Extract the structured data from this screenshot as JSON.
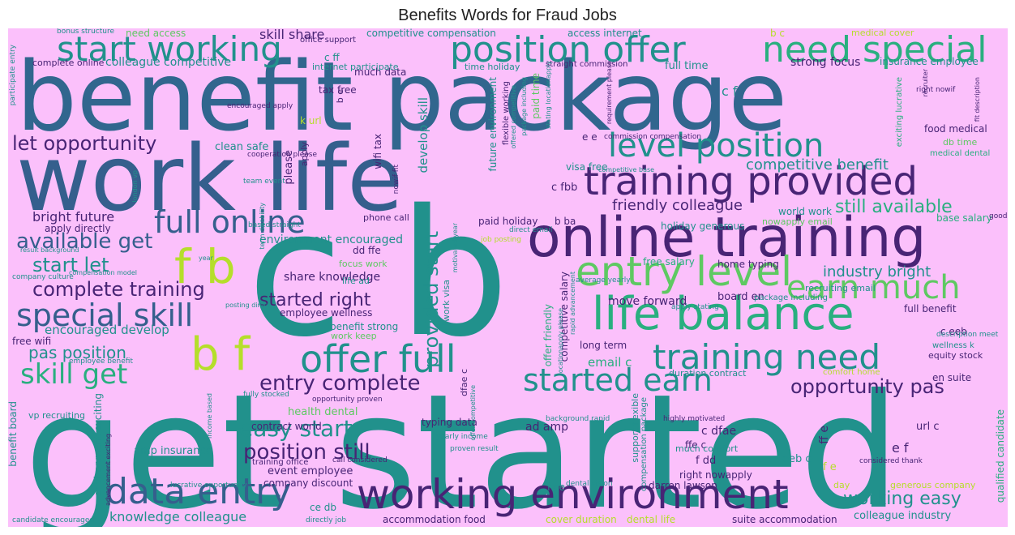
{
  "title": "Benefits Words for Fraud Jobs",
  "palette": {
    "background": "#fbc0fb",
    "dark_purple": "#482475",
    "blue": "#31668e",
    "dark_blue": "#355f8d",
    "teal": "#21918c",
    "green": "#29af7f",
    "light_green": "#5ec962",
    "yellow_green": "#b5de2b"
  },
  "words": [
    "get started",
    "c b",
    "benefit package",
    "work life",
    "online training",
    "training provided",
    "start working",
    "position offer",
    "need special",
    "life balance",
    "entry level",
    "training need",
    "offer full",
    "f b",
    "b f",
    "full online",
    "level position",
    "earn much",
    "started earn",
    "data entry",
    "working environment",
    "special skill",
    "skill get",
    "complete training",
    "available get",
    "start let",
    "pas position",
    "easy start",
    "position still",
    "entry complete",
    "opportunity pas",
    "let opportunity",
    "still available",
    "competitive benefit",
    "friendly colleague",
    "industry bright",
    "working easy",
    "provided start",
    "started right",
    "knowledge colleague",
    "bright future",
    "skill share",
    "share knowledge",
    "encouraged develop",
    "colleague competitive",
    "competitive compensation",
    "access internet",
    "full time",
    "strong focus",
    "insurance employee",
    "tax free",
    "c f",
    "c ff",
    "much data",
    "time holiday",
    "straight commission",
    "need access",
    "office support",
    "complete online",
    "internet participate",
    "b c",
    "medical cover",
    "environment encouraged",
    "phone call",
    "apply directly",
    "dd ffe",
    "focus work",
    "life ad",
    "employee wellness",
    "benefit strong",
    "work keep",
    "free wifi",
    "email c",
    "long term",
    "duration contract",
    "home typing",
    "board en",
    "move forward",
    "full benefit",
    "c eeb",
    "equity stock",
    "en suite",
    "health dental",
    "contract world",
    "typing data",
    "ad amp",
    "c dfae",
    "ffe c",
    "much comfort",
    "right nowapply",
    "darren lawson",
    "f dd",
    "eeb c",
    "e f",
    "f e",
    "ff e",
    "amp insurance",
    "event employee",
    "training office",
    "company discount",
    "ce db",
    "accommodation food",
    "cover duration",
    "dental life",
    "suite accommodation",
    "colleague industry",
    "generous company",
    "qualified candidate",
    "f ce",
    "day",
    "url c",
    "holiday generous",
    "base salary",
    "world work",
    "nowapply email",
    "food medical",
    "db time",
    "medical dental",
    "fit description",
    "right nowif",
    "paid holiday",
    "b ba",
    "c fbb",
    "visa free",
    "clean safe",
    "k url",
    "wifi tax",
    "develop skill",
    "future environment",
    "flexible working",
    "paid time",
    "e e",
    "free salary",
    "recruiting email",
    "package including",
    "apply stating",
    "vp recruiting",
    "fully stocked",
    "opportunity proven",
    "income based",
    "benefit board",
    "environment exciting",
    "encouraged apply",
    "team event",
    "cooperation please",
    "please",
    "apply",
    "participate entry",
    "exciting lucrative",
    "competitive salary",
    "offer friendly",
    "provided start",
    "support flexible",
    "compensation package",
    "competitive base",
    "commission compensation",
    "requirement please",
    "stating locationapply",
    "based straight",
    "direct email",
    "job posting",
    "company culture",
    "compensation model",
    "posting direct",
    "result background",
    "year",
    "employee benefit",
    "yearly income",
    "proven result",
    "background rapid",
    "highly motivated",
    "comfort home",
    "description meet",
    "considered thank",
    "dental vision",
    "call considered",
    "lucrative opportunity",
    "candidate encouraged",
    "directly job",
    "advancement exciting",
    "average yearly",
    "good work",
    "wellness k",
    "rapid advancement",
    "motivated year",
    "work visa",
    "dfae c",
    "offer competitive",
    "term disability",
    "bonus structure",
    "london vp",
    "nowif fit"
  ]
}
